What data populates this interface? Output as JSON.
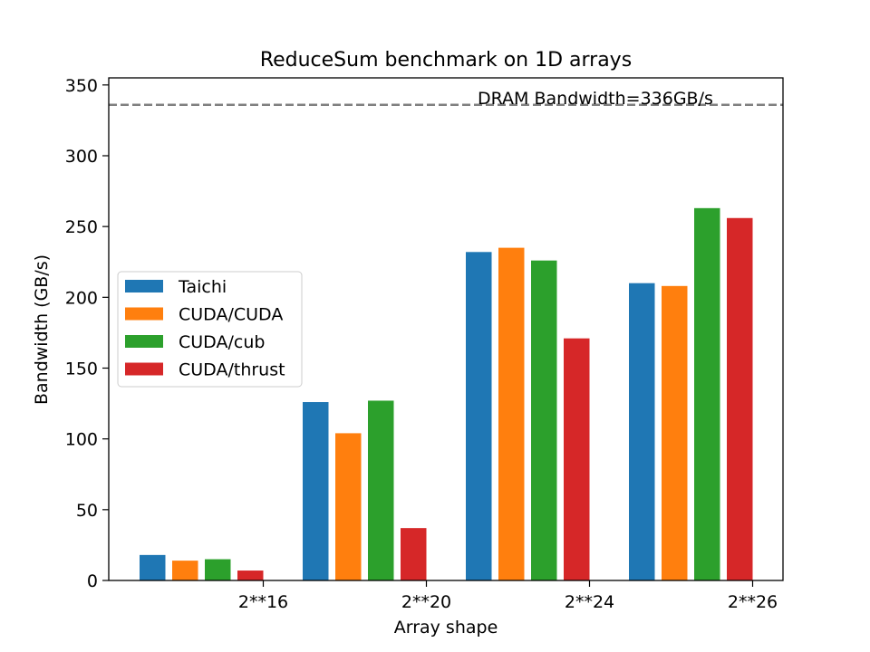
{
  "chart_data": {
    "type": "bar",
    "title": "ReduceSum benchmark on 1D arrays",
    "xlabel": "Array shape",
    "ylabel": "Bandwidth (GB/s)",
    "ylim": [
      0,
      355
    ],
    "yticks": [
      0,
      50,
      100,
      150,
      200,
      250,
      300,
      350
    ],
    "categories": [
      "2**16",
      "2**20",
      "2**24",
      "2**26"
    ],
    "series": [
      {
        "name": "Taichi",
        "color": "#1f77b4",
        "values": [
          18,
          126,
          232,
          210
        ]
      },
      {
        "name": "CUDA/CUDA",
        "color": "#ff7f0e",
        "values": [
          14,
          104,
          235,
          208
        ]
      },
      {
        "name": "CUDA/cub",
        "color": "#2ca02c",
        "values": [
          15,
          127,
          226,
          263
        ]
      },
      {
        "name": "CUDA/thrust",
        "color": "#d62728",
        "values": [
          7,
          37,
          171,
          256
        ]
      }
    ],
    "reference_line": {
      "label": "DRAM Bandwidth=336GB/s",
      "value": 336,
      "color": "#808080",
      "style": "dashed"
    },
    "legend_placement": "center-left",
    "grid": false
  }
}
